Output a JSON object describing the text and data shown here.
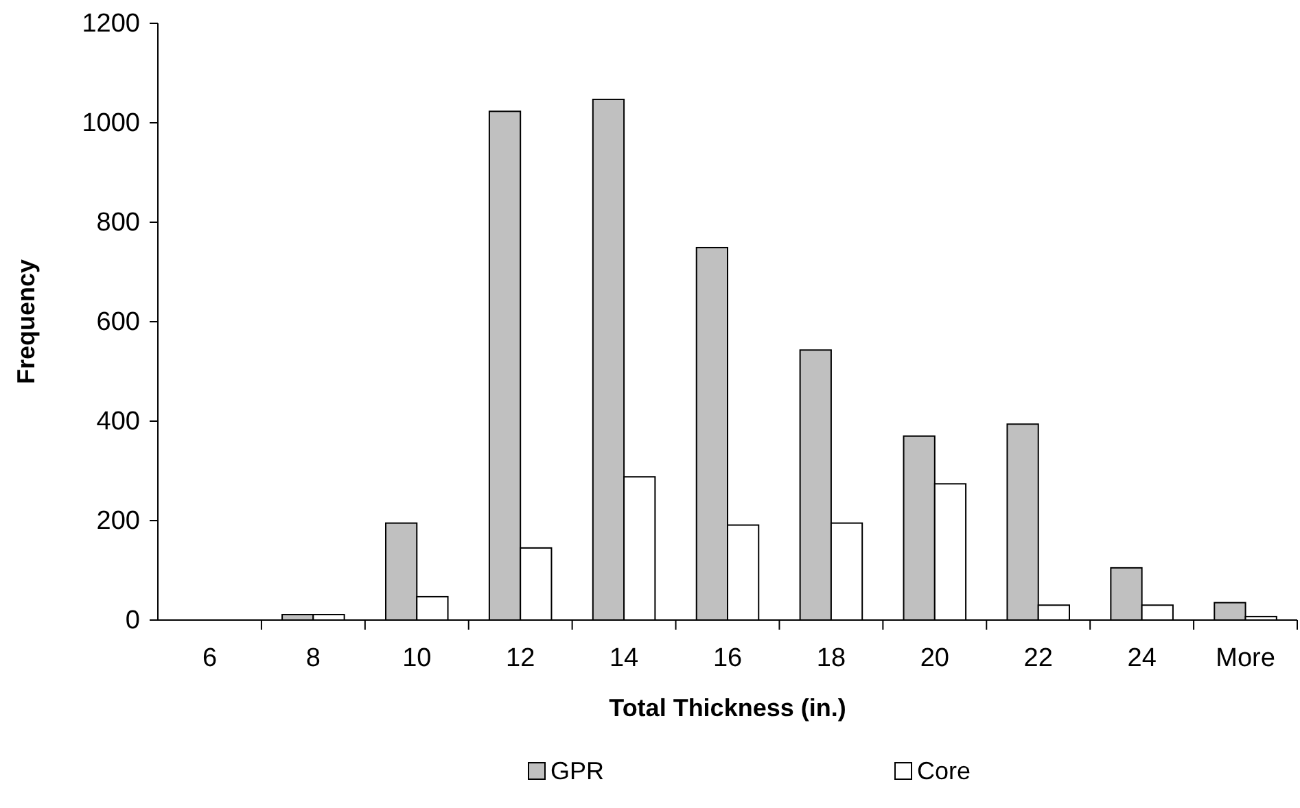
{
  "chart_data": {
    "type": "bar",
    "xlabel": "Total Thickness (in.)",
    "ylabel": "Frequency",
    "categories": [
      "6",
      "8",
      "10",
      "12",
      "14",
      "16",
      "18",
      "20",
      "22",
      "24",
      "More"
    ],
    "series": [
      {
        "name": "GPR",
        "color": "#c0c0c0",
        "values": [
          0,
          11,
          195,
          1023,
          1047,
          749,
          543,
          370,
          394,
          105,
          35
        ]
      },
      {
        "name": "Core",
        "color": "#ffffff",
        "values": [
          0,
          11,
          47,
          145,
          288,
          191,
          195,
          274,
          30,
          30,
          7
        ]
      }
    ],
    "ylim": [
      0,
      1200
    ],
    "yticks": [
      0,
      200,
      400,
      600,
      800,
      1000,
      1200
    ],
    "grid": false,
    "legend": "bottom"
  }
}
